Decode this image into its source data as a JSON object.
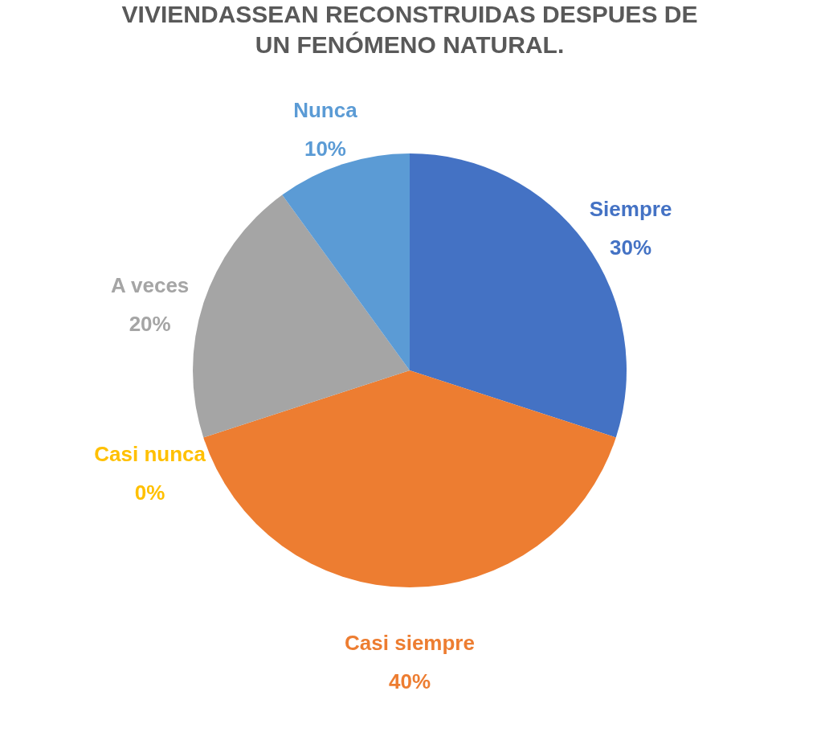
{
  "chart_data": {
    "type": "pie",
    "title": "VIVIENDASSEAN RECONSTRUIDAS DESPUES DE UN FENÓMENO NATURAL.",
    "categories": [
      "Siempre",
      "Casi siempre",
      "Casi nunca",
      "A veces",
      "Nunca"
    ],
    "values": [
      30,
      40,
      0,
      20,
      10
    ],
    "colors": [
      "#4472c4",
      "#ed7d31",
      "#ffc000",
      "#a5a5a5",
      "#5b9bd5"
    ],
    "value_labels": [
      "30%",
      "40%",
      "0%",
      "20%",
      "10%"
    ],
    "legend": false
  }
}
